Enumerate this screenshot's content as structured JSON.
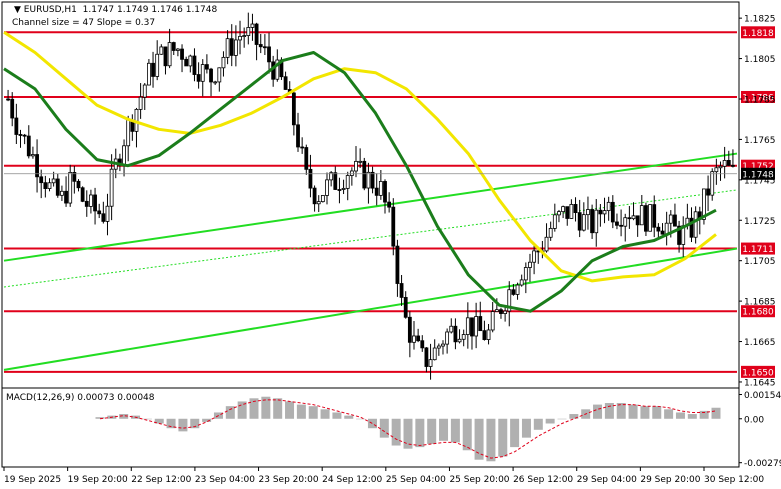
{
  "chart_data": {
    "type": "candlestick",
    "symbol": "EURUSD,H1",
    "ohlc_header": "1.1747 1.1749 1.1746 1.1748",
    "channel_label": "Channel size = 47 Slope = 0.37",
    "y_axis_ticks": [
      "1.1825",
      "1.1805",
      "1.1785",
      "1.1765",
      "1.1745",
      "1.1725",
      "1.1705",
      "1.1685",
      "1.1665",
      "1.1645"
    ],
    "ylim": [
      1.1643,
      1.1832
    ],
    "x_axis_ticks": [
      "19 Sep 2025",
      "19 Sep 20:00",
      "22 Sep 12:00",
      "23 Sep 04:00",
      "23 Sep 20:00",
      "24 Sep 12:00",
      "25 Sep 04:00",
      "25 Sep 20:00",
      "26 Sep 12:00",
      "29 Sep 04:00",
      "29 Sep 20:00",
      "30 Sep 12:00"
    ],
    "levels": [
      {
        "label": "1.1818",
        "value": 1.1818,
        "color": "#e0001a"
      },
      {
        "label": "1.1786",
        "value": 1.1786,
        "color": "#e0001a"
      },
      {
        "label": "1.1752",
        "value": 1.1752,
        "color": "#e0001a"
      },
      {
        "label": "1.1711",
        "value": 1.1711,
        "color": "#e0001a"
      },
      {
        "label": "1.1680",
        "value": 1.168,
        "color": "#e0001a"
      },
      {
        "label": "1.1650",
        "value": 1.165,
        "color": "#e0001a"
      }
    ],
    "price_tag": {
      "label": "1.1748",
      "value": 1.1748
    },
    "close_series": [
      1.1785,
      1.177,
      1.176,
      1.175,
      1.174,
      1.1735,
      1.1745,
      1.1735,
      1.173,
      1.1728,
      1.175,
      1.1768,
      1.178,
      1.1795,
      1.1805,
      1.1808,
      1.181,
      1.1805,
      1.18,
      1.1795,
      1.1805,
      1.1812,
      1.1818,
      1.1815,
      1.1808,
      1.18,
      1.179,
      1.177,
      1.1745,
      1.1737,
      1.1742,
      1.1745,
      1.175,
      1.1748,
      1.1745,
      1.174,
      1.172,
      1.168,
      1.1665,
      1.1655,
      1.166,
      1.1668,
      1.1672,
      1.1675,
      1.167,
      1.1668,
      1.168,
      1.169,
      1.17,
      1.1705,
      1.1712,
      1.1722,
      1.1728,
      1.173,
      1.1725,
      1.1722,
      1.1735,
      1.1728,
      1.173,
      1.1728,
      1.1726,
      1.1725,
      1.1722,
      1.1718,
      1.172,
      1.173,
      1.1745,
      1.1752,
      1.1748
    ],
    "trend_lines": [
      {
        "from": [
          0,
          1.1705
        ],
        "to": [
          1,
          1.1758
        ],
        "color": "#22dd22",
        "width": 2
      },
      {
        "from": [
          0,
          1.1651
        ],
        "to": [
          1,
          1.1711
        ],
        "color": "#22dd22",
        "width": 2
      },
      {
        "from": [
          0,
          1.1692
        ],
        "to": [
          1,
          1.174
        ],
        "color": "#22dd22",
        "width": 1,
        "dash": true
      }
    ],
    "ma_slow": {
      "color": "#f2e600",
      "values": [
        1.1818,
        1.1808,
        1.1795,
        1.1782,
        1.1775,
        1.177,
        1.1768,
        1.1772,
        1.1778,
        1.1786,
        1.1795,
        1.18,
        1.1798,
        1.179,
        1.1775,
        1.1758,
        1.1735,
        1.1715,
        1.17,
        1.1695,
        1.1697,
        1.1698,
        1.1706,
        1.1718
      ]
    },
    "ma_fast": {
      "color": "#1b7d1b",
      "values": [
        1.18,
        1.179,
        1.177,
        1.1755,
        1.1752,
        1.1757,
        1.1768,
        1.178,
        1.1792,
        1.1804,
        1.1808,
        1.1798,
        1.1778,
        1.1752,
        1.1722,
        1.1698,
        1.1683,
        1.168,
        1.169,
        1.1705,
        1.1712,
        1.1715,
        1.1722,
        1.173
      ]
    },
    "macd": {
      "label": "MACD(12,26,9) 0.00073 0.00048",
      "axis_ticks": [
        "0.00154",
        "0.00",
        "-0.00279"
      ],
      "ylim": [
        -0.003,
        0.0017
      ],
      "histogram": [
        0.0001,
        0.0002,
        0.0003,
        0.0002,
        0.0,
        -0.0003,
        -0.0006,
        -0.0008,
        -0.0006,
        -0.0002,
        0.0004,
        0.0008,
        0.0011,
        0.0013,
        0.0014,
        0.0013,
        0.0011,
        0.0009,
        0.0008,
        0.0006,
        0.0004,
        0.0002,
        0.0,
        -0.0006,
        -0.0012,
        -0.0017,
        -0.0019,
        -0.0018,
        -0.0016,
        -0.0014,
        -0.0015,
        -0.002,
        -0.0026,
        -0.0027,
        -0.0024,
        -0.0018,
        -0.0012,
        -0.0007,
        -0.0003,
        0.0,
        0.0003,
        0.0006,
        0.0009,
        0.001,
        0.001,
        0.0009,
        0.0008,
        0.0008,
        0.0006,
        0.0004,
        0.0003,
        0.0005,
        0.0007
      ],
      "signal": [
        0.0,
        0.0001,
        0.0002,
        0.0001,
        -0.0001,
        -0.0003,
        -0.0005,
        -0.0006,
        -0.0005,
        -0.0002,
        0.0002,
        0.0006,
        0.0009,
        0.0011,
        0.0012,
        0.0012,
        0.0011,
        0.001,
        0.0009,
        0.0007,
        0.0005,
        0.0003,
        0.0001,
        -0.0003,
        -0.0008,
        -0.0013,
        -0.0016,
        -0.0017,
        -0.0016,
        -0.0015,
        -0.0015,
        -0.0018,
        -0.0022,
        -0.0025,
        -0.0024,
        -0.0021,
        -0.0016,
        -0.0011,
        -0.0007,
        -0.0003,
        0.0,
        0.0003,
        0.0006,
        0.0008,
        0.0009,
        0.0009,
        0.0008,
        0.0008,
        0.0007,
        0.0005,
        0.0004,
        0.0004,
        0.0005
      ],
      "signal_color": "#e0001a",
      "hist_color": "#b0b0b0"
    },
    "grid": false
  }
}
